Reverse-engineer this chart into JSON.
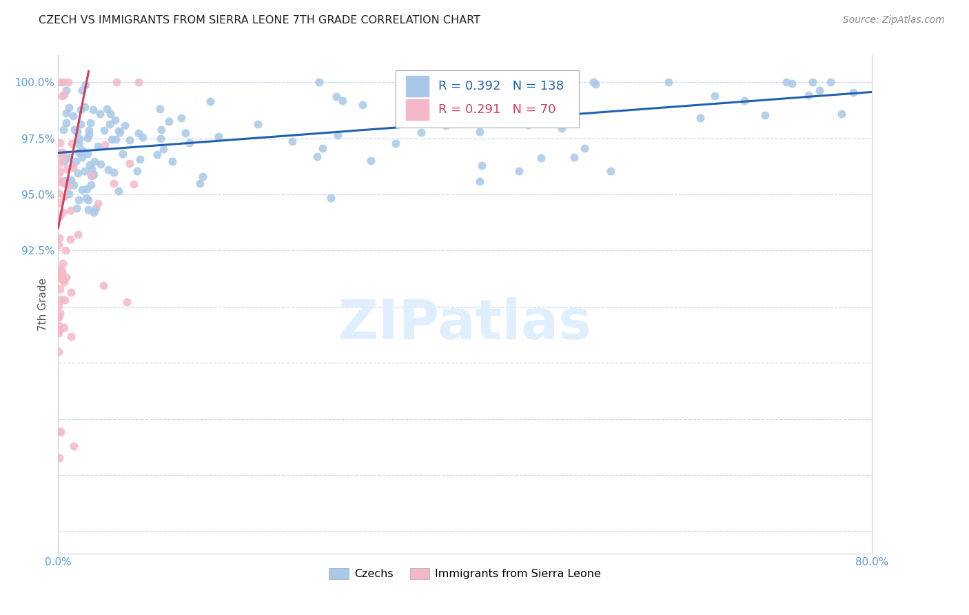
{
  "title": "CZECH VS IMMIGRANTS FROM SIERRA LEONE 7TH GRADE CORRELATION CHART",
  "source": "Source: ZipAtlas.com",
  "ylabel_label": "7th Grade",
  "xmin": 0.0,
  "xmax": 80.0,
  "ymin": 79.0,
  "ymax": 101.2,
  "ytick_vals": [
    80.0,
    82.5,
    85.0,
    87.5,
    90.0,
    92.5,
    95.0,
    97.5,
    100.0
  ],
  "ytick_labels": [
    "",
    "",
    "",
    "",
    "",
    "92.5%",
    "95.0%",
    "97.5%",
    "100.0%"
  ],
  "xtick_vals": [
    0,
    10,
    20,
    30,
    40,
    50,
    60,
    70,
    80
  ],
  "xtick_labels": [
    "0.0%",
    "",
    "",
    "",
    "",
    "",
    "",
    "",
    "80.0%"
  ],
  "blue_R": 0.392,
  "blue_N": 138,
  "pink_R": 0.291,
  "pink_N": 70,
  "blue_dot_color": "#a8c8e8",
  "pink_dot_color": "#f4b8c8",
  "blue_line_color": "#2060b0",
  "pink_line_color": "#d04060",
  "axis_color": "#5b9bd5",
  "grid_color": "#c8d8f0",
  "watermark_text": "ZIPatlas",
  "watermark_color": "#ddeeff",
  "legend_label_blue": "Czechs",
  "legend_label_pink": "Immigrants from Sierra Leone",
  "title_color": "#222222",
  "source_color": "#888888",
  "ylabel_color": "#555555"
}
